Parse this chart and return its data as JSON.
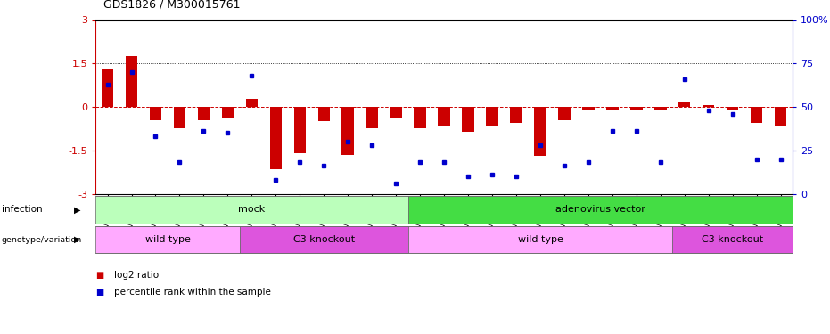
{
  "title": "GDS1826 / M300015761",
  "samples": [
    "GSM87316",
    "GSM87317",
    "GSM93998",
    "GSM93999",
    "GSM94000",
    "GSM94001",
    "GSM93633",
    "GSM93634",
    "GSM93651",
    "GSM93652",
    "GSM93653",
    "GSM93654",
    "GSM93657",
    "GSM86643",
    "GSM87306",
    "GSM87307",
    "GSM87308",
    "GSM87309",
    "GSM87310",
    "GSM87311",
    "GSM87312",
    "GSM87313",
    "GSM87314",
    "GSM87315",
    "GSM93655",
    "GSM93656",
    "GSM93658",
    "GSM93659",
    "GSM93660"
  ],
  "log2_ratio": [
    1.3,
    1.75,
    -0.45,
    -0.75,
    -0.45,
    -0.4,
    0.28,
    -2.15,
    -1.6,
    -0.5,
    -1.65,
    -0.75,
    -0.38,
    -0.75,
    -0.65,
    -0.85,
    -0.65,
    -0.55,
    -1.7,
    -0.45,
    -0.12,
    -0.08,
    -0.08,
    -0.12,
    0.18,
    0.06,
    -0.08,
    -0.55,
    -0.65
  ],
  "percentile_rank": [
    63,
    70,
    33,
    18,
    36,
    35,
    68,
    8,
    18,
    16,
    30,
    28,
    6,
    18,
    18,
    10,
    11,
    10,
    28,
    16,
    18,
    36,
    36,
    18,
    66,
    48,
    46,
    20,
    20
  ],
  "infection_groups": [
    {
      "label": "mock",
      "start": 0,
      "end": 12,
      "color": "#bbffbb"
    },
    {
      "label": "adenovirus vector",
      "start": 13,
      "end": 28,
      "color": "#44dd44"
    }
  ],
  "genotype_groups": [
    {
      "label": "wild type",
      "start": 0,
      "end": 5,
      "color": "#ffaaff"
    },
    {
      "label": "C3 knockout",
      "start": 6,
      "end": 12,
      "color": "#dd55dd"
    },
    {
      "label": "wild type",
      "start": 13,
      "end": 23,
      "color": "#ffaaff"
    },
    {
      "label": "C3 knockout",
      "start": 24,
      "end": 28,
      "color": "#dd55dd"
    }
  ],
  "ylim": [
    -3,
    3
  ],
  "yticks_left": [
    -3,
    -1.5,
    0,
    1.5,
    3
  ],
  "yticks_right": [
    0,
    25,
    50,
    75,
    100
  ],
  "dotted_lines": [
    -1.5,
    1.5
  ],
  "bar_color": "#cc0000",
  "dot_color": "#0000cc"
}
